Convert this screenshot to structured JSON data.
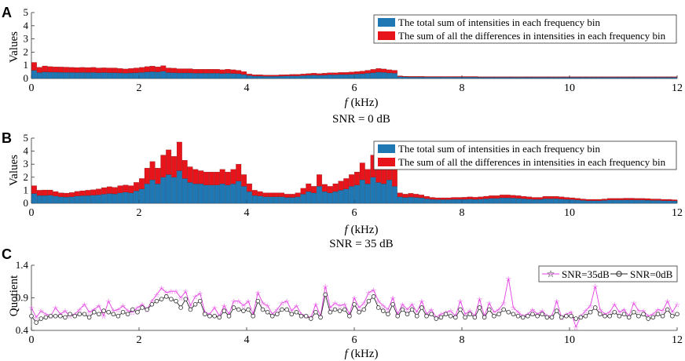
{
  "colors": {
    "total": "#1f77b4",
    "diff": "#e8141b",
    "snr35": "#e53ee5",
    "snr0": "#2a2a2a",
    "axis": "#333333",
    "grid": "#bfbfbf"
  },
  "chart_data": [
    {
      "id": "A",
      "type": "bar",
      "stacked": true,
      "panel_label": "A",
      "xlabel_italic": "f",
      "xlabel_unit": " (kHz)",
      "ylabel": "Values",
      "title_below": "SNR = 0 dB",
      "xlim": [
        0,
        12
      ],
      "ylim": [
        0,
        5
      ],
      "xticks": [
        0,
        2,
        4,
        6,
        8,
        10,
        12
      ],
      "yticks": [
        0,
        1,
        2,
        3,
        4,
        5
      ],
      "legend_position": "top-right",
      "series": [
        {
          "name": "The total sum of intensities in each frequency bin",
          "values": [
            0.62,
            0.45,
            0.5,
            0.48,
            0.48,
            0.47,
            0.46,
            0.46,
            0.45,
            0.46,
            0.45,
            0.46,
            0.44,
            0.45,
            0.44,
            0.44,
            0.42,
            0.4,
            0.42,
            0.44,
            0.46,
            0.5,
            0.52,
            0.5,
            0.55,
            0.45,
            0.44,
            0.42,
            0.42,
            0.42,
            0.4,
            0.4,
            0.4,
            0.4,
            0.4,
            0.38,
            0.4,
            0.38,
            0.36,
            0.3,
            0.22,
            0.18,
            0.18,
            0.17,
            0.17,
            0.17,
            0.18,
            0.19,
            0.2,
            0.2,
            0.22,
            0.24,
            0.26,
            0.24,
            0.26,
            0.28,
            0.28,
            0.3,
            0.3,
            0.32,
            0.34,
            0.36,
            0.4,
            0.44,
            0.48,
            0.46,
            0.42,
            0.4,
            0.14,
            0.12,
            0.11,
            0.11,
            0.11,
            0.1,
            0.1,
            0.1,
            0.1,
            0.1,
            0.1,
            0.1,
            0.1,
            0.1,
            0.1,
            0.09,
            0.09,
            0.09,
            0.09,
            0.09,
            0.09,
            0.09,
            0.09,
            0.09,
            0.09,
            0.09,
            0.09,
            0.09,
            0.09,
            0.09,
            0.09,
            0.09,
            0.09,
            0.09,
            0.09,
            0.09,
            0.09,
            0.09,
            0.09,
            0.09,
            0.09,
            0.09,
            0.09,
            0.09,
            0.09,
            0.09,
            0.09,
            0.09,
            0.09,
            0.09,
            0.09,
            0.09
          ]
        },
        {
          "name": "The sum of all the differences in intensities in each frequency bin",
          "values": [
            0.6,
            0.4,
            0.45,
            0.42,
            0.4,
            0.4,
            0.4,
            0.38,
            0.38,
            0.38,
            0.38,
            0.38,
            0.36,
            0.36,
            0.36,
            0.36,
            0.34,
            0.32,
            0.34,
            0.36,
            0.38,
            0.4,
            0.42,
            0.38,
            0.42,
            0.35,
            0.34,
            0.32,
            0.32,
            0.32,
            0.3,
            0.3,
            0.3,
            0.3,
            0.3,
            0.28,
            0.3,
            0.28,
            0.26,
            0.22,
            0.12,
            0.1,
            0.1,
            0.09,
            0.09,
            0.09,
            0.1,
            0.1,
            0.11,
            0.11,
            0.12,
            0.13,
            0.14,
            0.13,
            0.14,
            0.15,
            0.15,
            0.16,
            0.16,
            0.17,
            0.18,
            0.2,
            0.22,
            0.25,
            0.28,
            0.26,
            0.24,
            0.22,
            0.06,
            0.05,
            0.05,
            0.05,
            0.05,
            0.05,
            0.05,
            0.05,
            0.05,
            0.05,
            0.05,
            0.05,
            0.05,
            0.05,
            0.05,
            0.04,
            0.04,
            0.04,
            0.04,
            0.04,
            0.04,
            0.04,
            0.04,
            0.04,
            0.04,
            0.04,
            0.04,
            0.04,
            0.04,
            0.04,
            0.04,
            0.04,
            0.04,
            0.04,
            0.04,
            0.04,
            0.04,
            0.04,
            0.04,
            0.04,
            0.04,
            0.04,
            0.04,
            0.04,
            0.04,
            0.04,
            0.04,
            0.04,
            0.04,
            0.04,
            0.04,
            0.04
          ]
        }
      ]
    },
    {
      "id": "B",
      "type": "bar",
      "stacked": true,
      "panel_label": "B",
      "xlabel_italic": "f",
      "xlabel_unit": " (kHz)",
      "ylabel": "Values",
      "title_below": "SNR = 35 dB",
      "xlim": [
        0,
        12
      ],
      "ylim": [
        0,
        5
      ],
      "xticks": [
        0,
        2,
        4,
        6,
        8,
        10,
        12
      ],
      "yticks": [
        0,
        1,
        2,
        3,
        4,
        5
      ],
      "legend_position": "top-right",
      "series": [
        {
          "name": "The total sum of intensities in each frequency bin",
          "values": [
            0.75,
            0.6,
            0.6,
            0.62,
            0.55,
            0.5,
            0.48,
            0.5,
            0.55,
            0.58,
            0.6,
            0.62,
            0.65,
            0.7,
            0.75,
            0.72,
            0.8,
            0.85,
            0.8,
            0.95,
            1.1,
            1.5,
            1.8,
            1.5,
            2.0,
            2.2,
            2.0,
            2.5,
            1.9,
            1.6,
            1.5,
            1.5,
            1.4,
            1.4,
            1.4,
            1.5,
            1.4,
            1.5,
            1.7,
            1.3,
            0.9,
            0.6,
            0.55,
            0.5,
            0.5,
            0.5,
            0.5,
            0.45,
            0.45,
            0.5,
            0.7,
            0.9,
            0.8,
            1.3,
            0.9,
            0.8,
            0.9,
            1.0,
            1.1,
            1.3,
            1.4,
            1.8,
            1.5,
            2.0,
            1.6,
            1.5,
            1.8,
            1.3,
            0.5,
            0.45,
            0.48,
            0.45,
            0.42,
            0.35,
            0.3,
            0.28,
            0.28,
            0.28,
            0.3,
            0.3,
            0.3,
            0.32,
            0.3,
            0.32,
            0.35,
            0.38,
            0.38,
            0.42,
            0.42,
            0.4,
            0.38,
            0.35,
            0.32,
            0.3,
            0.3,
            0.35,
            0.35,
            0.35,
            0.32,
            0.3,
            0.28,
            0.25,
            0.22,
            0.2,
            0.2,
            0.2,
            0.22,
            0.25,
            0.25,
            0.25,
            0.26,
            0.26,
            0.25,
            0.25,
            0.24,
            0.22,
            0.22,
            0.2,
            0.2,
            0.18
          ]
        },
        {
          "name": "The sum of all the differences in intensities in each frequency bin",
          "values": [
            0.6,
            0.4,
            0.42,
            0.4,
            0.35,
            0.3,
            0.3,
            0.32,
            0.36,
            0.38,
            0.4,
            0.42,
            0.45,
            0.5,
            0.52,
            0.5,
            0.55,
            0.55,
            0.55,
            0.65,
            0.8,
            1.2,
            1.4,
            1.2,
            1.7,
            1.9,
            1.6,
            2.2,
            1.4,
            1.2,
            1.1,
            1.0,
            1.0,
            1.0,
            1.0,
            1.1,
            1.0,
            1.1,
            1.3,
            0.9,
            0.6,
            0.4,
            0.35,
            0.3,
            0.3,
            0.3,
            0.3,
            0.25,
            0.25,
            0.3,
            0.45,
            0.6,
            0.5,
            0.9,
            0.55,
            0.5,
            0.6,
            0.7,
            0.8,
            0.9,
            1.0,
            1.3,
            1.1,
            1.7,
            1.2,
            1.1,
            1.9,
            1.3,
            0.3,
            0.25,
            0.28,
            0.25,
            0.22,
            0.18,
            0.15,
            0.14,
            0.14,
            0.14,
            0.15,
            0.15,
            0.16,
            0.17,
            0.16,
            0.17,
            0.19,
            0.2,
            0.2,
            0.22,
            0.22,
            0.21,
            0.2,
            0.18,
            0.17,
            0.15,
            0.15,
            0.18,
            0.18,
            0.18,
            0.17,
            0.15,
            0.14,
            0.13,
            0.11,
            0.1,
            0.1,
            0.1,
            0.11,
            0.12,
            0.12,
            0.12,
            0.13,
            0.13,
            0.12,
            0.12,
            0.12,
            0.11,
            0.11,
            0.1,
            0.1,
            0.09
          ]
        }
      ]
    },
    {
      "id": "C",
      "type": "line",
      "panel_label": "C",
      "xlabel_italic": "f",
      "xlabel_unit": " (kHz)",
      "ylabel": "Quotient",
      "xlim": [
        0,
        12
      ],
      "ylim": [
        0.4,
        1.4
      ],
      "xticks": [
        0,
        2,
        4,
        6,
        8,
        10,
        12
      ],
      "yticks": [
        0.4,
        0.9,
        1.4
      ],
      "legend_position": "top-right",
      "series": [
        {
          "name": "SNR=35dB",
          "values": [
            0.75,
            0.6,
            0.7,
            0.65,
            0.62,
            0.75,
            0.65,
            0.7,
            0.62,
            0.65,
            0.72,
            0.8,
            0.68,
            0.72,
            0.78,
            0.62,
            0.85,
            0.7,
            0.72,
            0.78,
            0.7,
            0.68,
            0.75,
            0.8,
            0.72,
            0.85,
            0.95,
            1.05,
            0.98,
            1.0,
            1.0,
            0.9,
            1.0,
            0.78,
            0.92,
            0.97,
            0.68,
            0.65,
            0.75,
            0.62,
            0.78,
            0.65,
            0.85,
            0.85,
            0.78,
            0.85,
            0.65,
            0.98,
            0.82,
            0.78,
            0.65,
            0.72,
            0.82,
            0.85,
            0.7,
            0.78,
            0.65,
            0.62,
            0.6,
            0.8,
            0.62,
            1.08,
            0.75,
            0.82,
            0.78,
            0.8,
            0.65,
            0.9,
            0.75,
            0.82,
            0.98,
            1.02,
            0.85,
            0.78,
            0.72,
            0.9,
            0.65,
            0.8,
            0.72,
            0.8,
            0.68,
            0.85,
            0.65,
            0.72,
            0.6,
            0.65,
            0.68,
            0.7,
            0.62,
            0.85,
            0.65,
            0.7,
            0.62,
            0.88,
            0.62,
            0.82,
            0.68,
            0.72,
            0.82,
            1.2,
            0.75,
            0.68,
            0.62,
            0.65,
            0.72,
            0.65,
            0.7,
            0.62,
            0.62,
            0.85,
            0.6,
            0.65,
            0.68,
            0.45,
            0.62,
            0.7,
            0.78,
            1.08,
            0.72,
            0.65,
            0.68,
            0.8,
            0.68,
            0.72,
            0.62,
            0.82,
            0.7,
            0.7,
            0.62,
            0.65,
            0.72,
            0.7,
            0.85,
            0.68,
            0.8
          ]
        },
        {
          "name": "SNR=0dB",
          "values": [
            0.62,
            0.52,
            0.58,
            0.6,
            0.62,
            0.62,
            0.62,
            0.6,
            0.65,
            0.62,
            0.65,
            0.65,
            0.6,
            0.68,
            0.65,
            0.7,
            0.68,
            0.65,
            0.62,
            0.68,
            0.65,
            0.72,
            0.68,
            0.75,
            0.72,
            0.8,
            0.85,
            0.88,
            0.92,
            0.88,
            0.85,
            0.75,
            0.88,
            0.72,
            0.8,
            0.85,
            0.65,
            0.62,
            0.62,
            0.6,
            0.7,
            0.62,
            0.75,
            0.72,
            0.7,
            0.72,
            0.62,
            0.85,
            0.72,
            0.68,
            0.62,
            0.65,
            0.72,
            0.72,
            0.65,
            0.68,
            0.62,
            0.62,
            0.58,
            0.68,
            0.6,
            0.95,
            0.68,
            0.72,
            0.7,
            0.72,
            0.62,
            0.8,
            0.68,
            0.72,
            0.85,
            0.92,
            0.75,
            0.7,
            0.65,
            0.8,
            0.62,
            0.72,
            0.65,
            0.72,
            0.62,
            0.75,
            0.62,
            0.65,
            0.58,
            0.6,
            0.65,
            0.62,
            0.6,
            0.72,
            0.6,
            0.65,
            0.6,
            0.75,
            0.6,
            0.72,
            0.62,
            0.65,
            0.72,
            0.68,
            0.65,
            0.62,
            0.6,
            0.62,
            0.65,
            0.62,
            0.65,
            0.6,
            0.6,
            0.7,
            0.6,
            0.62,
            0.62,
            0.58,
            0.6,
            0.62,
            0.68,
            0.75,
            0.65,
            0.62,
            0.62,
            0.68,
            0.62,
            0.65,
            0.6,
            0.68,
            0.62,
            0.65,
            0.58,
            0.6,
            0.65,
            0.62,
            0.72,
            0.62,
            0.65
          ]
        }
      ]
    }
  ]
}
